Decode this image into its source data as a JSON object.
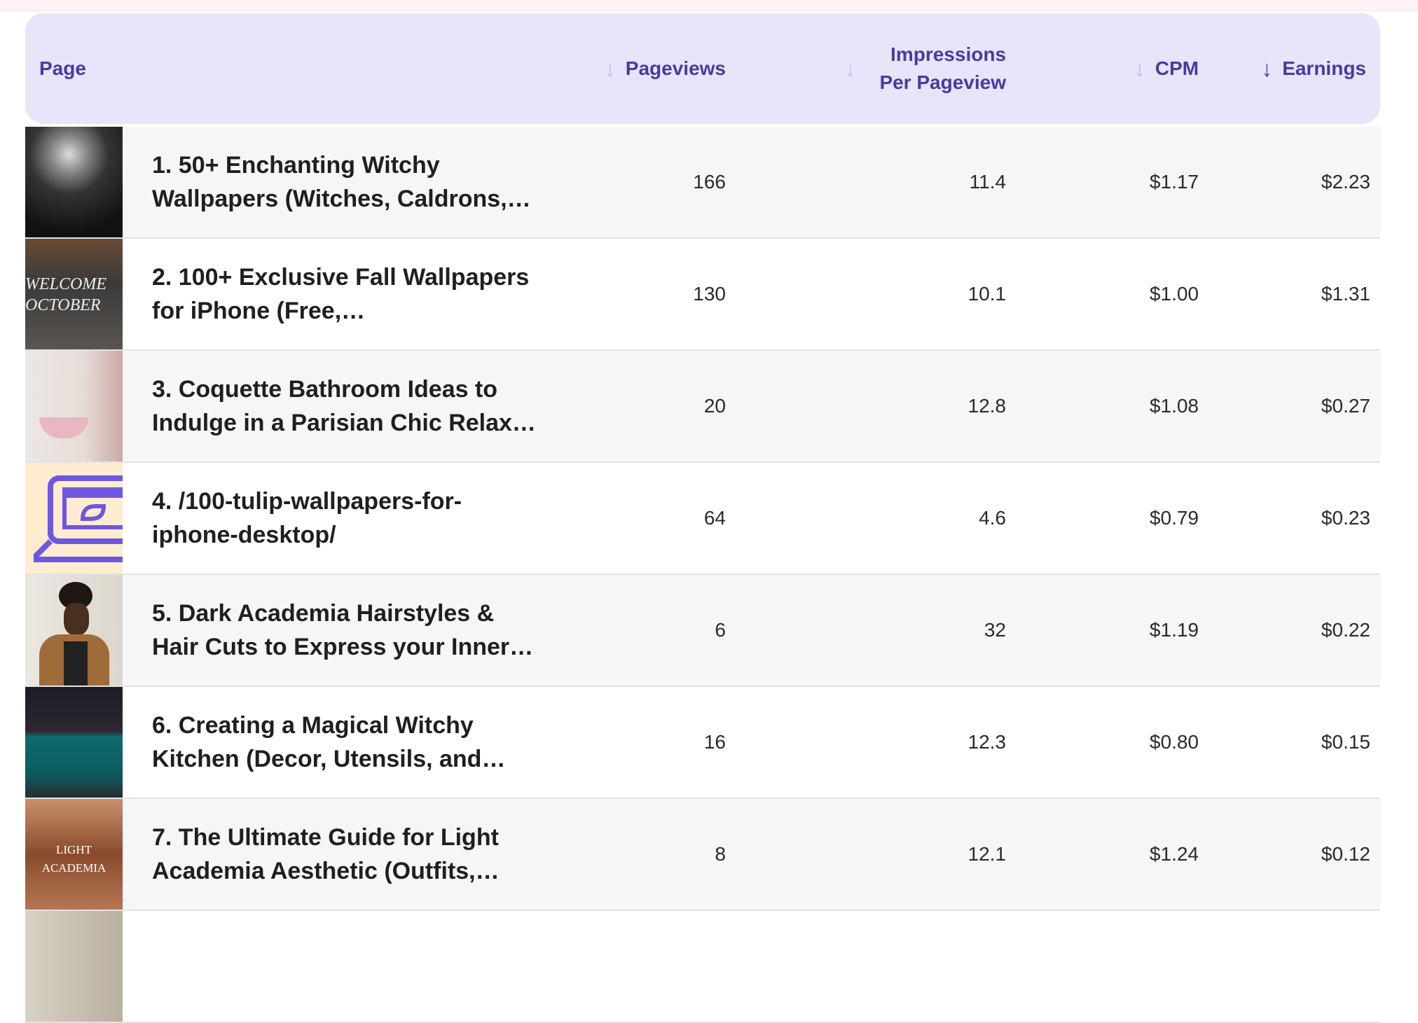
{
  "header": {
    "page": "Page",
    "pageviews": "Pageviews",
    "impressions_line1": "Impressions",
    "impressions_line2": "Per Pageview",
    "cpm": "CPM",
    "earnings": "Earnings",
    "sort_icon": "arrow-down-icon"
  },
  "colors": {
    "header_bg": "#e8e4fa",
    "header_text": "#4a3a9e",
    "arrow_inactive": "#c3bbe8"
  },
  "rows": [
    {
      "title": "1. 50+ Enchanting Witchy Wallpapers (Witches, Caldrons,…",
      "pageviews": "166",
      "ipp": "11.4",
      "cpm": "$1.17",
      "earnings": "$2.23"
    },
    {
      "title": "2. 100+ Exclusive Fall Wallpapers for iPhone (Free,…",
      "pageviews": "130",
      "ipp": "10.1",
      "cpm": "$1.00",
      "earnings": "$1.31",
      "thumb_text": "WELCOME OCTOBER"
    },
    {
      "title": "3. Coquette Bathroom Ideas to Indulge in a Parisian Chic Relax…",
      "pageviews": "20",
      "ipp": "12.8",
      "cpm": "$1.08",
      "earnings": "$0.27"
    },
    {
      "title": "4. /100-tulip-wallpapers-for-iphone-desktop/",
      "pageviews": "64",
      "ipp": "4.6",
      "cpm": "$0.79",
      "earnings": "$0.23"
    },
    {
      "title": "5. Dark Academia Hairstyles & Hair Cuts to Express your Inner…",
      "pageviews": "6",
      "ipp": "32",
      "cpm": "$1.19",
      "earnings": "$0.22"
    },
    {
      "title": "6. Creating a Magical Witchy Kitchen (Decor, Utensils, and…",
      "pageviews": "16",
      "ipp": "12.3",
      "cpm": "$0.80",
      "earnings": "$0.15"
    },
    {
      "title": "7. The Ultimate Guide for Light Academia Aesthetic (Outfits,…",
      "pageviews": "8",
      "ipp": "12.1",
      "cpm": "$1.24",
      "earnings": "$0.12",
      "thumb_text": "LIGHT ACADEMIA"
    }
  ]
}
